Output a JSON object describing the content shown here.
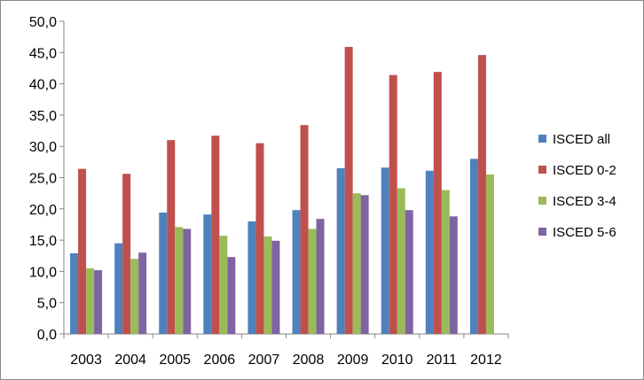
{
  "chart_data": {
    "type": "bar",
    "title": "",
    "xlabel": "",
    "ylabel": "",
    "categories": [
      "2003",
      "2004",
      "2005",
      "2006",
      "2007",
      "2008",
      "2009",
      "2010",
      "2011",
      "2012"
    ],
    "ylim": [
      0,
      50
    ],
    "ytick_labels": [
      "0,0",
      "5,0",
      "10,0",
      "15,0",
      "20,0",
      "25,0",
      "30,0",
      "35,0",
      "40,0",
      "45,0",
      "50,0"
    ],
    "grid": false,
    "legend_position": "right",
    "series": [
      {
        "name": "ISCED all",
        "color": "#4f81bd",
        "values": [
          12.9,
          14.5,
          19.4,
          19.1,
          18.0,
          19.8,
          26.5,
          26.6,
          26.1,
          28.0
        ]
      },
      {
        "name": "ISCED 0-2",
        "color": "#c0504d",
        "values": [
          26.4,
          25.6,
          31.0,
          31.7,
          30.5,
          33.4,
          45.9,
          41.4,
          41.9,
          44.6
        ]
      },
      {
        "name": "ISCED 3-4",
        "color": "#9bbb59",
        "values": [
          10.5,
          12.0,
          17.1,
          15.7,
          15.6,
          16.8,
          22.5,
          23.3,
          23.0,
          25.5
        ]
      },
      {
        "name": "ISCED 5-6",
        "color": "#8064a2",
        "values": [
          10.2,
          13.0,
          16.8,
          12.3,
          14.9,
          18.4,
          22.2,
          19.8,
          18.8,
          null
        ]
      }
    ]
  }
}
